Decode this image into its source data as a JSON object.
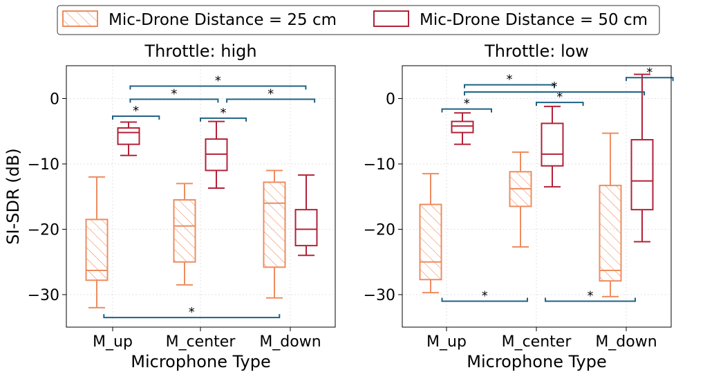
{
  "colors": {
    "c25": "#ee8c5f",
    "c50": "#b22137",
    "sig": "#1f6185"
  },
  "legend": [
    {
      "label": "Mic-Drone Distance = 25 cm",
      "style": "hatched"
    },
    {
      "label": "Mic-Drone Distance = 50 cm",
      "style": "solid"
    }
  ],
  "chart_data": [
    {
      "type": "box",
      "title": "Throttle: high",
      "xlabel": "Microphone Type",
      "ylabel": "SI-SDR (dB)",
      "categories": [
        "M_up",
        "M_center",
        "M_down"
      ],
      "ylim": [
        -35,
        5
      ],
      "yticks": [
        0,
        -10,
        -20,
        -30
      ],
      "ytick_labels": [
        "0",
        "−10",
        "−20",
        "−30"
      ],
      "grid": true,
      "series": [
        {
          "name": "Mic-Drone Distance = 25 cm",
          "boxes": [
            {
              "min": -32.0,
              "q1": -27.8,
              "median": -26.3,
              "q3": -18.5,
              "max": -12.0
            },
            {
              "min": -28.5,
              "q1": -25.0,
              "median": -19.5,
              "q3": -15.5,
              "max": -13.0
            },
            {
              "min": -30.5,
              "q1": -25.8,
              "median": -16.0,
              "q3": -12.8,
              "max": -11.0
            }
          ]
        },
        {
          "name": "Mic-Drone Distance = 50 cm",
          "boxes": [
            {
              "min": -8.7,
              "q1": -7.0,
              "median": -5.2,
              "q3": -4.5,
              "max": -3.6
            },
            {
              "min": -13.7,
              "q1": -11.0,
              "median": -8.5,
              "q3": -6.2,
              "max": -3.5
            },
            {
              "min": -24.0,
              "q1": -22.5,
              "median": -20.0,
              "q3": -17.0,
              "max": -11.7
            }
          ]
        }
      ],
      "significance": [
        {
          "from": 0.0,
          "to": 0.53,
          "y": -2.7,
          "label": "*"
        },
        {
          "from": 1.0,
          "to": 1.52,
          "y": -3.0,
          "label": "*"
        },
        {
          "from": 0.2,
          "to": 1.2,
          "y": -0.1,
          "label": "*"
        },
        {
          "from": 0.2,
          "to": 2.2,
          "y": 1.9,
          "label": "*"
        },
        {
          "from": 1.3,
          "to": 2.3,
          "y": -0.1,
          "label": "*"
        },
        {
          "from": -0.1,
          "to": 1.9,
          "y": -33.5,
          "label": "*",
          "below": true
        }
      ]
    },
    {
      "type": "box",
      "title": "Throttle: low",
      "xlabel": "Microphone Type",
      "ylabel": "",
      "categories": [
        "M_up",
        "M_center",
        "M_down"
      ],
      "ylim": [
        -35,
        5
      ],
      "yticks": [
        0,
        -10,
        -20,
        -30
      ],
      "ytick_labels": [
        "0",
        "−10",
        "−20",
        "−30"
      ],
      "grid": true,
      "series": [
        {
          "name": "Mic-Drone Distance = 25 cm",
          "boxes": [
            {
              "min": -29.7,
              "q1": -27.7,
              "median": -25.0,
              "q3": -16.2,
              "max": -11.5
            },
            {
              "min": -22.7,
              "q1": -16.5,
              "median": -13.8,
              "q3": -11.2,
              "max": -8.2
            },
            {
              "min": -30.3,
              "q1": -27.9,
              "median": -26.3,
              "q3": -13.3,
              "max": -5.3
            }
          ]
        },
        {
          "name": "Mic-Drone Distance = 50 cm",
          "boxes": [
            {
              "min": -7.0,
              "q1": -5.2,
              "median": -4.2,
              "q3": -3.5,
              "max": -2.2
            },
            {
              "min": -13.5,
              "q1": -10.3,
              "median": -8.5,
              "q3": -3.8,
              "max": -1.2
            },
            {
              "min": -21.9,
              "q1": -17.0,
              "median": -12.6,
              "q3": -6.3,
              "max": 3.7
            }
          ]
        }
      ],
      "significance": [
        {
          "from": -0.05,
          "to": 0.5,
          "y": -1.6,
          "label": "*"
        },
        {
          "from": 0.2,
          "to": 1.2,
          "y": 2.1,
          "label": "*"
        },
        {
          "from": 0.2,
          "to": 2.2,
          "y": 1.0,
          "label": "*"
        },
        {
          "from": 1.0,
          "to": 1.52,
          "y": -0.6,
          "label": "*"
        },
        {
          "from": 2.0,
          "to": 2.52,
          "y": 3.2,
          "label": "*"
        },
        {
          "from": -0.05,
          "to": 0.9,
          "y": -31.0,
          "label": "*",
          "below": true
        },
        {
          "from": 1.1,
          "to": 2.1,
          "y": -31.0,
          "label": "*",
          "below": true
        }
      ]
    }
  ]
}
